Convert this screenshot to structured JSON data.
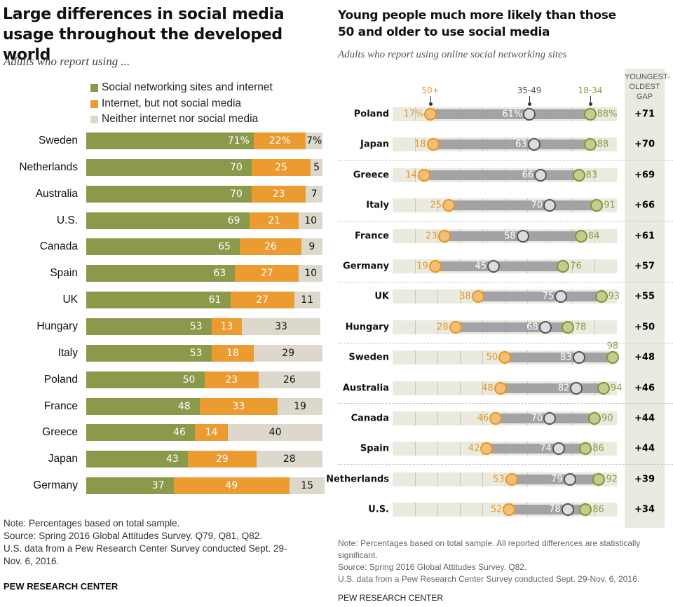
{
  "colors": {
    "green": "#8a9a4a",
    "orange": "#ec9b31",
    "gray": "#dcd9cc",
    "old": "#e8961e",
    "mid": "#555555",
    "young": "#7e9632",
    "range": "#a3a3a5",
    "gap_bg": "#ebeae2"
  },
  "chart_data": [
    {
      "type": "bar",
      "stacked": true,
      "orientation": "horizontal",
      "title": "Large differences in social media usage throughout the developed world",
      "subtitle": "Adults who report using ...",
      "legend": [
        "Social networking sites and internet",
        "Internet, but not social media",
        "Neither internet nor social media"
      ],
      "legend_position": "top",
      "categories": [
        "Sweden",
        "Netherlands",
        "Australia",
        "U.S.",
        "Canada",
        "Spain",
        "UK",
        "Hungary",
        "Italy",
        "Poland",
        "France",
        "Greece",
        "Japan",
        "Germany"
      ],
      "series": [
        {
          "name": "Social networking sites and internet",
          "values": [
            71,
            70,
            70,
            69,
            65,
            63,
            61,
            53,
            53,
            50,
            48,
            46,
            43,
            37
          ]
        },
        {
          "name": "Internet, but not social media",
          "values": [
            22,
            25,
            23,
            21,
            26,
            27,
            27,
            13,
            18,
            23,
            33,
            14,
            29,
            49
          ]
        },
        {
          "name": "Neither internet nor social media",
          "values": [
            7,
            5,
            7,
            10,
            9,
            10,
            11,
            33,
            29,
            26,
            19,
            40,
            28,
            15
          ]
        }
      ],
      "first_row_suffix": "%",
      "xlim": [
        0,
        100
      ],
      "note": [
        "Note: Percentages based on total sample.",
        "Source: Spring 2016 Global Attitudes Survey. Q79, Q81, Q82.",
        "U.S. data from a Pew Research Center Survey conducted Sept. 29-",
        "Nov. 6, 2016."
      ],
      "brand": "PEW RESEARCH CENTER"
    },
    {
      "type": "scatter",
      "variant": "dot-plot",
      "title": "Young people much more likely than those 50 and older to use social media",
      "subtitle": "Adults who report using online social networking sites",
      "series_names": [
        "50+",
        "35-49",
        "18-34"
      ],
      "gap_header": "YOUNGEST-OLDEST GAP",
      "gap_header_lines": [
        "YOUNGEST-",
        "OLDEST",
        "GAP"
      ],
      "xlim": [
        0,
        100
      ],
      "categories": [
        "Poland",
        "Japan",
        "Greece",
        "Italy",
        "France",
        "Germany",
        "UK",
        "Hungary",
        "Sweden",
        "Australia",
        "Canada",
        "Spain",
        "Netherlands",
        "U.S."
      ],
      "series": [
        {
          "name": "50+",
          "values": [
            17,
            18,
            14,
            25,
            23,
            19,
            38,
            28,
            50,
            48,
            46,
            42,
            53,
            52
          ]
        },
        {
          "name": "35-49",
          "values": [
            61,
            63,
            66,
            70,
            58,
            45,
            75,
            68,
            83,
            82,
            70,
            74,
            79,
            78
          ]
        },
        {
          "name": "18-34",
          "values": [
            88,
            88,
            83,
            91,
            84,
            76,
            93,
            78,
            98,
            94,
            90,
            86,
            92,
            86
          ]
        }
      ],
      "gap": [
        "+71",
        "+70",
        "+69",
        "+66",
        "+61",
        "+57",
        "+55",
        "+50",
        "+48",
        "+46",
        "+44",
        "+44",
        "+39",
        "+34"
      ],
      "first_row_suffix": "%",
      "note": [
        "Note: Percentages based on total sample. All reported differences are statistically significant.",
        "Source: Spring 2016 Global Attitudes Survey. Q82.",
        "U.S. data from a Pew Research Center Survey conducted Sept. 29-Nov. 6, 2016."
      ],
      "brand": "PEW RESEARCH CENTER"
    }
  ]
}
